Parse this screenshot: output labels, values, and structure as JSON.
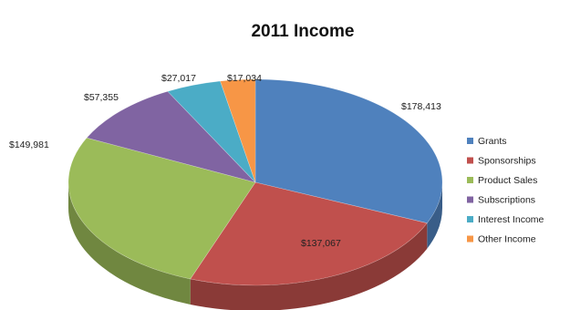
{
  "chart_data": {
    "type": "pie",
    "variant": "3d",
    "title": "2011 Income",
    "categories": [
      "Grants",
      "Sponsorships",
      "Product Sales",
      "Subscriptions",
      "Interest Income",
      "Other Income"
    ],
    "values": [
      178413,
      137067,
      149981,
      57355,
      27017,
      17034
    ],
    "labels": [
      "$178,413",
      "$137,067",
      "$149,981",
      "$57,355",
      "$27,017",
      "$17,034"
    ],
    "colors": [
      "#4f81bd",
      "#c0504d",
      "#9bbb59",
      "#8064a2",
      "#4bacc6",
      "#f79646"
    ],
    "legend_position": "right"
  }
}
